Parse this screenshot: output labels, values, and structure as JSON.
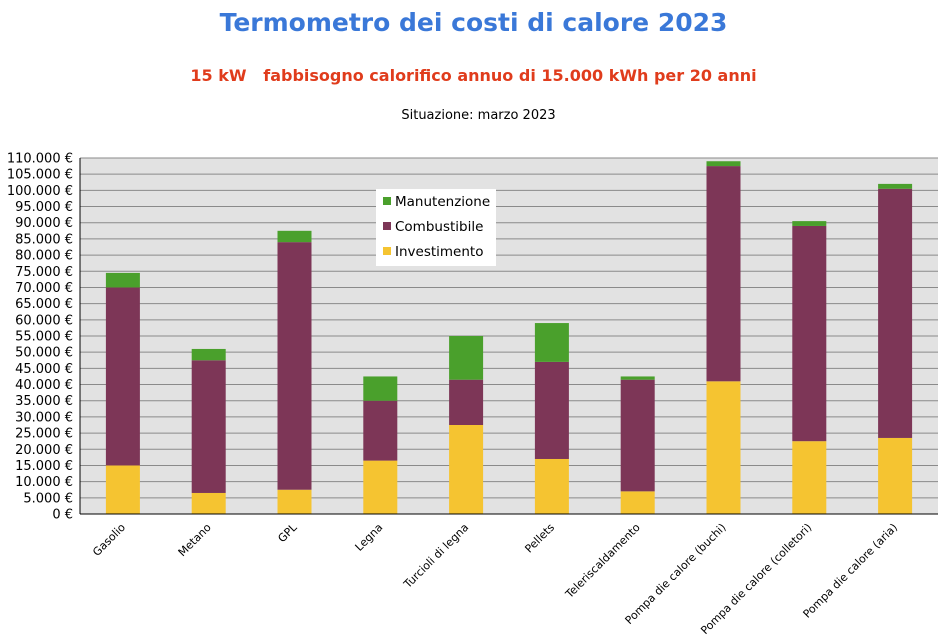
{
  "title": "Termometro dei costi di calore 2023",
  "subtitle": "15 kW   fabbisogno calorifico annuo di 15.000 kWh per 20 anni",
  "status": "Situazione: marzo 2023",
  "colors": {
    "investimento": "#f5c431",
    "combustibile": "#7d3657",
    "manutenzione": "#4aa02c",
    "plot_bg": "#e2e2e2",
    "grid": "#8a8a8a"
  },
  "chart_data": {
    "type": "bar",
    "stacked": true,
    "categories": [
      "Gasolio",
      "Metano",
      "GPL",
      "Legna",
      "Turcioli di legna",
      "Pellets",
      "Teleriscaldamento",
      "Pompa die calore (buchi)",
      "Pompa die calore (colletori)",
      "Pompa die calore (aria)"
    ],
    "series": [
      {
        "name": "Investimento",
        "values": [
          15000,
          6500,
          7500,
          16500,
          27500,
          17000,
          7000,
          41000,
          22500,
          23500
        ]
      },
      {
        "name": "Combustibile",
        "values": [
          55000,
          41000,
          76500,
          18500,
          14000,
          30000,
          34500,
          66500,
          66500,
          77000
        ]
      },
      {
        "name": "Manutenzione",
        "values": [
          4500,
          3500,
          3500,
          7500,
          13500,
          12000,
          1000,
          1500,
          1500,
          1500
        ]
      }
    ],
    "legend_order": [
      "Manutenzione",
      "Combustibile",
      "Investimento"
    ],
    "ylim": [
      0,
      110000
    ],
    "y_ticks": [
      "0 €",
      "5.000 €",
      "10.000 €",
      "15.000 €",
      "20.000 €",
      "25.000 €",
      "30.000 €",
      "35.000 €",
      "40.000 €",
      "45.000 €",
      "50.000 €",
      "55.000 €",
      "60.000 €",
      "65.000 €",
      "70.000 €",
      "75.000 €",
      "80.000 €",
      "85.000 €",
      "90.000 €",
      "95.000 €",
      "100.000 €",
      "105.000 €",
      "110.000 €"
    ],
    "grid": true,
    "legend_position": "inside-top-left"
  }
}
